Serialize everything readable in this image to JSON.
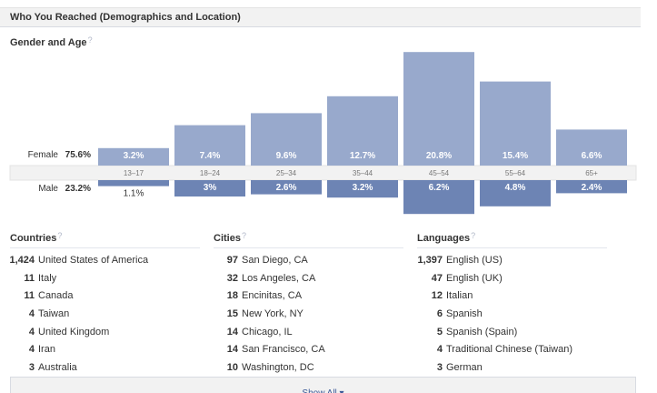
{
  "section": {
    "title": "Who You Reached (Demographics and Location)",
    "help": "?"
  },
  "chart_title": "Gender and Age",
  "chart_data": {
    "type": "bar",
    "title": "Gender and Age",
    "categories": [
      "13-17",
      "18-24",
      "25-34",
      "35-44",
      "45-54",
      "55-64",
      "65+"
    ],
    "series": [
      {
        "name": "Female",
        "total": "75.6%",
        "values": [
          3.2,
          7.4,
          9.6,
          12.7,
          20.8,
          15.4,
          6.6
        ],
        "labels": [
          "3.2%",
          "7.4%",
          "9.6%",
          "12.7%",
          "20.8%",
          "15.4%",
          "6.6%"
        ],
        "color": "#98a9cc"
      },
      {
        "name": "Male",
        "total": "23.2%",
        "values": [
          1.1,
          3,
          2.6,
          3.2,
          6.2,
          4.8,
          2.4
        ],
        "labels": [
          "1.1%",
          "3%",
          "2.6%",
          "3.2%",
          "6.2%",
          "4.8%",
          "2.4%"
        ],
        "color": "#6d84b4"
      }
    ]
  },
  "countries": {
    "title": "Countries",
    "items": [
      {
        "count": "1,424",
        "name": "United States of America"
      },
      {
        "count": "11",
        "name": "Italy"
      },
      {
        "count": "11",
        "name": "Canada"
      },
      {
        "count": "4",
        "name": "Taiwan"
      },
      {
        "count": "4",
        "name": "United Kingdom"
      },
      {
        "count": "4",
        "name": "Iran"
      },
      {
        "count": "3",
        "name": "Australia"
      }
    ]
  },
  "cities": {
    "title": "Cities",
    "items": [
      {
        "count": "97",
        "name": "San Diego, CA"
      },
      {
        "count": "32",
        "name": "Los Angeles, CA"
      },
      {
        "count": "18",
        "name": "Encinitas, CA"
      },
      {
        "count": "15",
        "name": "New York, NY"
      },
      {
        "count": "14",
        "name": "Chicago, IL"
      },
      {
        "count": "14",
        "name": "San Francisco, CA"
      },
      {
        "count": "10",
        "name": "Washington, DC"
      }
    ]
  },
  "languages": {
    "title": "Languages",
    "items": [
      {
        "count": "1,397",
        "name": "English (US)"
      },
      {
        "count": "47",
        "name": "English (UK)"
      },
      {
        "count": "12",
        "name": "Italian"
      },
      {
        "count": "6",
        "name": "Spanish"
      },
      {
        "count": "5",
        "name": "Spanish (Spain)"
      },
      {
        "count": "4",
        "name": "Traditional Chinese (Taiwan)"
      },
      {
        "count": "3",
        "name": "German"
      }
    ]
  },
  "show_all": "Show All ▾",
  "colors": {
    "female": "#98a9cc",
    "male": "#6d84b4",
    "axis_band": "#f2f2f2",
    "link": "#3b5998"
  }
}
